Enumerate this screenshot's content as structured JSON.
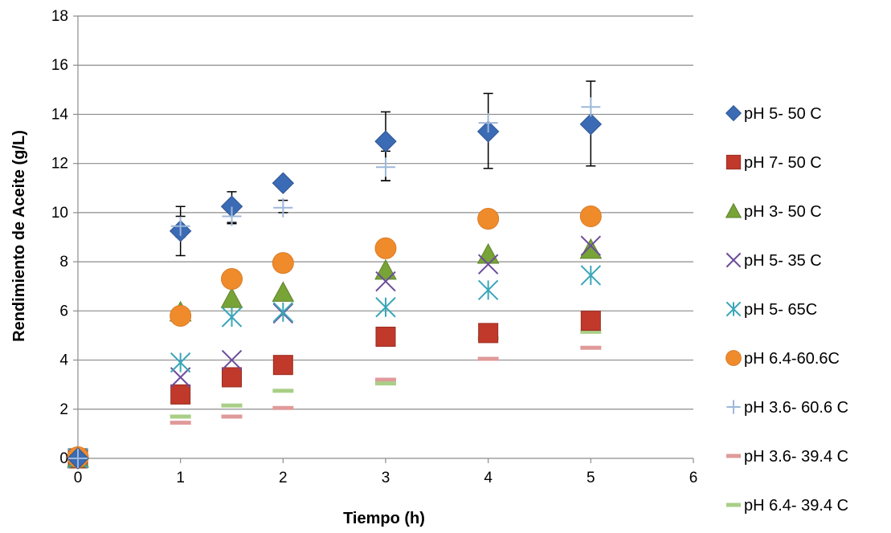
{
  "chart_data": {
    "type": "scatter",
    "title": "",
    "xlabel": "Tiempo (h)",
    "ylabel": "Rendimiento de Aceite (g/L)",
    "xlim": [
      0,
      6
    ],
    "ylim": [
      0,
      18
    ],
    "xticks": [
      "0",
      "1",
      "2",
      "3",
      "4",
      "5",
      "6"
    ],
    "yticks": [
      "0",
      "2",
      "4",
      "6",
      "8",
      "10",
      "12",
      "14",
      "16",
      "18"
    ],
    "grid": "horizontal",
    "legend_position": "right",
    "series": [
      {
        "name": "pH 5- 50 C",
        "marker": "diamond",
        "color": "#3B6BB5",
        "points": [
          [
            0,
            0
          ],
          [
            1,
            9.25
          ],
          [
            1.5,
            10.25
          ],
          [
            2,
            11.2
          ],
          [
            3,
            12.9
          ],
          [
            4,
            13.3
          ],
          [
            5,
            13.6
          ]
        ],
        "error": [
          [
            1,
            8.25,
            10.25
          ],
          [
            1.5,
            9.6,
            10.85
          ],
          [
            3,
            11.3,
            14.1
          ],
          [
            4,
            11.8,
            14.85
          ],
          [
            5,
            11.9,
            15.35
          ]
        ]
      },
      {
        "name": "pH 7- 50 C",
        "marker": "square",
        "color": "#C0392B",
        "points": [
          [
            0,
            0
          ],
          [
            1,
            2.6
          ],
          [
            1.5,
            3.3
          ],
          [
            2,
            3.8
          ],
          [
            3,
            4.95
          ],
          [
            4,
            5.1
          ],
          [
            5,
            5.6
          ]
        ]
      },
      {
        "name": "pH 3- 50 C",
        "marker": "triangle",
        "color": "#77A337",
        "points": [
          [
            0,
            0
          ],
          [
            1,
            5.95
          ],
          [
            1.5,
            6.5
          ],
          [
            2,
            6.75
          ],
          [
            3,
            7.65
          ],
          [
            4,
            8.3
          ],
          [
            5,
            8.5
          ]
        ]
      },
      {
        "name": "pH 5- 35 C",
        "marker": "x",
        "color": "#6B4C9A",
        "points": [
          [
            0,
            0
          ],
          [
            1,
            3.3
          ],
          [
            1.5,
            4.0
          ],
          [
            2,
            5.9
          ],
          [
            3,
            7.2
          ],
          [
            4,
            7.9
          ],
          [
            5,
            8.65
          ]
        ]
      },
      {
        "name": "pH 5- 65C",
        "marker": "asterisk",
        "color": "#3AA6B9",
        "points": [
          [
            0,
            0
          ],
          [
            1,
            3.9
          ],
          [
            1.5,
            5.75
          ],
          [
            2,
            5.95
          ],
          [
            3,
            6.15
          ],
          [
            4,
            6.85
          ],
          [
            5,
            7.45
          ]
        ]
      },
      {
        "name": "pH 6.4-60.6C",
        "marker": "circle",
        "color": "#F08B2C",
        "points": [
          [
            0,
            0.05
          ],
          [
            1,
            5.8
          ],
          [
            1.5,
            7.3
          ],
          [
            2,
            7.95
          ],
          [
            3,
            8.55
          ],
          [
            4,
            9.75
          ],
          [
            5,
            9.85
          ]
        ]
      },
      {
        "name": "pH 3.6- 60.6 C",
        "marker": "plus",
        "color": "#9DB7DA",
        "points": [
          [
            0,
            0
          ],
          [
            1,
            9.45
          ],
          [
            1.5,
            9.85
          ],
          [
            2,
            10.2
          ],
          [
            3,
            11.85
          ],
          [
            4,
            13.65
          ],
          [
            5,
            14.3
          ]
        ],
        "error": [
          [
            1,
            9.0,
            9.85
          ],
          [
            1.5,
            9.55,
            10.1
          ],
          [
            2,
            10.0,
            10.5
          ],
          [
            3,
            11.3,
            12.5
          ]
        ]
      },
      {
        "name": "pH 3.6- 39.4 C",
        "marker": "dash",
        "color": "#E09A9A",
        "points": [
          [
            0,
            0
          ],
          [
            1,
            1.45
          ],
          [
            1.5,
            1.7
          ],
          [
            2,
            2.05
          ],
          [
            3,
            3.2
          ],
          [
            4,
            4.05
          ],
          [
            5,
            4.5
          ]
        ]
      },
      {
        "name": "pH 6.4- 39.4 C",
        "marker": "dash",
        "color": "#A9CF87",
        "points": [
          [
            0,
            0
          ],
          [
            1,
            1.7
          ],
          [
            1.5,
            2.15
          ],
          [
            2,
            2.75
          ],
          [
            3,
            3.05
          ],
          [
            4,
            4.9
          ],
          [
            5,
            5.15
          ]
        ]
      }
    ]
  }
}
